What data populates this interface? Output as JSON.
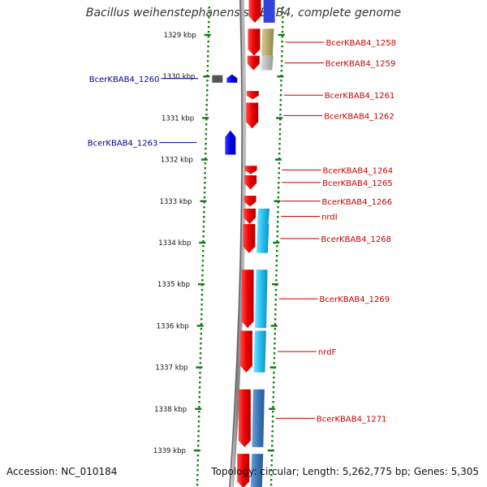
{
  "title": "Bacillus weihenstephanensis KBAB4, complete genome",
  "footer": {
    "accession": "Accession: NC_010184",
    "summary": "Topology: circular; Length: 5,262,775 bp; Genes: 5,305"
  },
  "colors": {
    "forward_gene": "#ee0000",
    "reverse_gene": "#0000ee",
    "pseudo_gene": "#555555",
    "cds_light": "#22c0f0",
    "cds_dark": "#3a78b8",
    "olive": "#b8aa6a",
    "grey": "#bbbbbb",
    "ticks": "#117a11",
    "label_red": "#cc0000",
    "label_blue": "#000099"
  },
  "ruler": {
    "unit": "kbp",
    "ticks": [
      1329,
      1330,
      1331,
      1332,
      1333,
      1334,
      1335,
      1336,
      1337,
      1338,
      1339
    ]
  },
  "genes": [
    {
      "label": "BcerKBAB4_1258",
      "strand": "+",
      "start_kbp": 1328.85,
      "end_kbp": 1329.5,
      "cds": "olive"
    },
    {
      "label": "BcerKBAB4_1259",
      "strand": "+",
      "start_kbp": 1329.5,
      "end_kbp": 1329.85,
      "cds": "grey"
    },
    {
      "label": "BcerKBAB4_1260",
      "strand": "-",
      "start_kbp": 1329.95,
      "end_kbp": 1330.15,
      "cds": "",
      "paired_pseudo": true
    },
    {
      "label": "BcerKBAB4_1261",
      "strand": "+",
      "start_kbp": 1330.35,
      "end_kbp": 1330.55,
      "cds": ""
    },
    {
      "label": "BcerKBAB4_1262",
      "strand": "+",
      "start_kbp": 1330.63,
      "end_kbp": 1331.25,
      "cds": ""
    },
    {
      "label": "BcerKBAB4_1263",
      "strand": "-",
      "start_kbp": 1331.3,
      "end_kbp": 1331.88,
      "cds": ""
    },
    {
      "label": "BcerKBAB4_1264",
      "strand": "+",
      "start_kbp": 1332.15,
      "end_kbp": 1332.35,
      "cds": ""
    },
    {
      "label": "BcerKBAB4_1265",
      "strand": "+",
      "start_kbp": 1332.38,
      "end_kbp": 1332.72,
      "cds": ""
    },
    {
      "label": "BcerKBAB4_1266",
      "strand": "+",
      "start_kbp": 1332.87,
      "end_kbp": 1333.13,
      "cds": ""
    },
    {
      "label": "nrdI",
      "strand": "+",
      "start_kbp": 1333.18,
      "end_kbp": 1333.55,
      "cds": "light"
    },
    {
      "label": "BcerKBAB4_1268",
      "strand": "+",
      "start_kbp": 1333.55,
      "end_kbp": 1334.25,
      "cds": "light"
    },
    {
      "label": "BcerKBAB4_1269",
      "strand": "+",
      "start_kbp": 1334.65,
      "end_kbp": 1336.05,
      "cds": "light"
    },
    {
      "label": "nrdF",
      "strand": "+",
      "start_kbp": 1336.12,
      "end_kbp": 1337.12,
      "cds": "light"
    },
    {
      "label": "BcerKBAB4_1271",
      "strand": "+",
      "start_kbp": 1337.53,
      "end_kbp": 1338.92,
      "cds": "dark"
    },
    {
      "label": "",
      "strand": "+",
      "start_kbp": 1339.08,
      "end_kbp": 1339.9,
      "cds": "dark"
    }
  ]
}
